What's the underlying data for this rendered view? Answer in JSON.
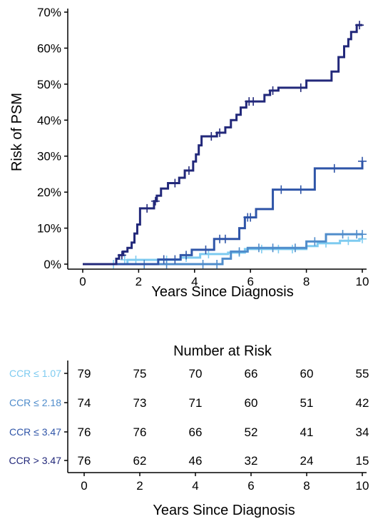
{
  "chart_data": {
    "type": "line",
    "subtype": "step",
    "xlabel": "Years Since Diagnosis",
    "ylabel": "Risk of PSM",
    "xlim": [
      0,
      10
    ],
    "ylim": [
      0,
      70
    ],
    "x_ticks": [
      "0",
      "2",
      "4",
      "6",
      "8",
      "10"
    ],
    "y_ticks": [
      "0%",
      "10%",
      "20%",
      "30%",
      "40%",
      "50%",
      "60%",
      "70%"
    ],
    "grid": false,
    "series": [
      {
        "name": "CCR ≤ 1.07",
        "color": "#7ecbf0",
        "steps": [
          [
            0,
            0
          ],
          [
            1.6,
            1.2
          ],
          [
            3.5,
            1.8
          ],
          [
            4.2,
            2.8
          ],
          [
            5.2,
            3.2
          ],
          [
            5.8,
            4.2
          ],
          [
            8.0,
            5.0
          ],
          [
            8.4,
            5.8
          ],
          [
            9.2,
            6.5
          ],
          [
            9.9,
            7.0
          ],
          [
            10,
            7.0
          ]
        ],
        "censors": [
          [
            1.1,
            0
          ],
          [
            1.5,
            1.2
          ],
          [
            1.9,
            1.2
          ],
          [
            3.0,
            1.2
          ],
          [
            3.7,
            1.8
          ],
          [
            4.5,
            2.8
          ],
          [
            5.6,
            3.2
          ],
          [
            6.4,
            4.2
          ],
          [
            7.0,
            4.2
          ],
          [
            7.5,
            4.2
          ],
          [
            8.7,
            5.8
          ],
          [
            9.5,
            6.5
          ],
          [
            10,
            7.0
          ]
        ]
      },
      {
        "name": "CCR ≤ 2.18",
        "color": "#4f8ccb",
        "steps": [
          [
            0,
            0
          ],
          [
            1.3,
            0
          ],
          [
            5.0,
            1.5
          ],
          [
            5.3,
            3.5
          ],
          [
            5.9,
            4.5
          ],
          [
            7.4,
            4.5
          ],
          [
            8.0,
            6.3
          ],
          [
            8.7,
            8.3
          ],
          [
            10,
            8.3
          ]
        ],
        "censors": [
          [
            2.2,
            0
          ],
          [
            3.0,
            0
          ],
          [
            4.3,
            0
          ],
          [
            4.8,
            0
          ],
          [
            5.6,
            3.5
          ],
          [
            6.3,
            4.5
          ],
          [
            6.8,
            4.5
          ],
          [
            7.6,
            4.5
          ],
          [
            8.3,
            6.3
          ],
          [
            9.3,
            8.3
          ],
          [
            9.8,
            8.3
          ],
          [
            10,
            8.3
          ]
        ]
      },
      {
        "name": "CCR ≤ 3.47",
        "color": "#2f55a8",
        "steps": [
          [
            0,
            0
          ],
          [
            2.7,
            1.3
          ],
          [
            3.5,
            2.5
          ],
          [
            3.9,
            4.0
          ],
          [
            4.7,
            7.0
          ],
          [
            5.2,
            7.0
          ],
          [
            5.6,
            10.0
          ],
          [
            5.8,
            13.0
          ],
          [
            6.2,
            15.3
          ],
          [
            6.8,
            20.7
          ],
          [
            8.3,
            26.6
          ],
          [
            10,
            28.6
          ]
        ],
        "censors": [
          [
            2.9,
            1.3
          ],
          [
            3.3,
            1.3
          ],
          [
            3.7,
            2.5
          ],
          [
            4.4,
            4.0
          ],
          [
            4.9,
            7.0
          ],
          [
            5.1,
            7.0
          ],
          [
            5.9,
            13.0
          ],
          [
            6.0,
            13.0
          ],
          [
            7.1,
            20.7
          ],
          [
            7.8,
            20.7
          ],
          [
            9.0,
            26.6
          ],
          [
            10,
            28.6
          ]
        ]
      },
      {
        "name": "CCR > 3.47",
        "color": "#22287a",
        "steps": [
          [
            0,
            0
          ],
          [
            1.05,
            0
          ],
          [
            1.2,
            1.5
          ],
          [
            1.3,
            2.5
          ],
          [
            1.45,
            3.5
          ],
          [
            1.6,
            4.5
          ],
          [
            1.75,
            6.0
          ],
          [
            1.85,
            8.5
          ],
          [
            1.95,
            11.0
          ],
          [
            2.05,
            15.5
          ],
          [
            2.55,
            17.5
          ],
          [
            2.65,
            19.0
          ],
          [
            2.8,
            21.0
          ],
          [
            3.05,
            22.5
          ],
          [
            3.45,
            24.0
          ],
          [
            3.65,
            26.0
          ],
          [
            3.95,
            28.5
          ],
          [
            4.05,
            30.5
          ],
          [
            4.15,
            33.0
          ],
          [
            4.25,
            35.5
          ],
          [
            4.8,
            36.5
          ],
          [
            5.1,
            38.0
          ],
          [
            5.3,
            40.0
          ],
          [
            5.5,
            41.5
          ],
          [
            5.65,
            43.5
          ],
          [
            5.85,
            45.2
          ],
          [
            6.5,
            47.0
          ],
          [
            6.7,
            48.2
          ],
          [
            7.0,
            49.0
          ],
          [
            8.0,
            51.0
          ],
          [
            8.9,
            53.5
          ],
          [
            9.15,
            57.5
          ],
          [
            9.35,
            60.5
          ],
          [
            9.5,
            62.5
          ],
          [
            9.6,
            64.5
          ],
          [
            9.8,
            66.4
          ],
          [
            10,
            66.4
          ]
        ],
        "censors": [
          [
            1.4,
            2.5
          ],
          [
            2.3,
            15.5
          ],
          [
            2.6,
            17.5
          ],
          [
            3.3,
            22.5
          ],
          [
            3.8,
            26.0
          ],
          [
            4.6,
            35.5
          ],
          [
            4.9,
            36.5
          ],
          [
            5.95,
            45.2
          ],
          [
            6.1,
            45.2
          ],
          [
            6.8,
            48.2
          ],
          [
            7.8,
            49.0
          ],
          [
            9.9,
            66.4
          ]
        ]
      }
    ],
    "risk_table": {
      "title": "Number at Risk",
      "xlabel": "Years Since Diagnosis",
      "times": [
        "0",
        "2",
        "4",
        "6",
        "8",
        "10"
      ],
      "groups": [
        {
          "label": "CCR ≤ 1.07",
          "color": "#7ecbf0",
          "counts": [
            "79",
            "75",
            "70",
            "66",
            "60",
            "55"
          ]
        },
        {
          "label": "CCR ≤ 2.18",
          "color": "#4f8ccb",
          "counts": [
            "74",
            "73",
            "71",
            "60",
            "51",
            "42"
          ]
        },
        {
          "label": "CCR ≤ 3.47",
          "color": "#2f55a8",
          "counts": [
            "76",
            "76",
            "66",
            "52",
            "41",
            "34"
          ]
        },
        {
          "label": "CCR > 3.47",
          "color": "#22287a",
          "counts": [
            "76",
            "62",
            "46",
            "32",
            "24",
            "15"
          ]
        }
      ]
    }
  }
}
